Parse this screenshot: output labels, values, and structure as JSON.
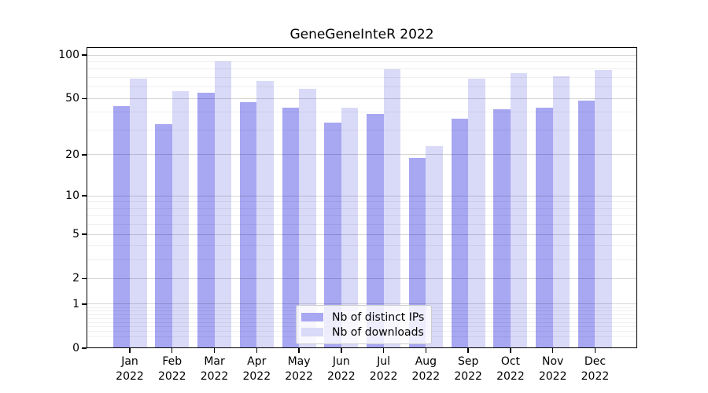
{
  "figure": {
    "title": "GeneGeneInteR 2022"
  },
  "chart_data": {
    "type": "bar",
    "title": "GeneGeneInteR 2022",
    "months": [
      "Jan",
      "Feb",
      "Mar",
      "Apr",
      "May",
      "Jun",
      "Jul",
      "Aug",
      "Sep",
      "Oct",
      "Nov",
      "Dec"
    ],
    "year_label": "2022",
    "series": [
      {
        "name": "Nb of distinct IPs",
        "color": "#a7a7f2",
        "values": [
          44,
          33,
          55,
          47,
          43,
          34,
          39,
          19,
          36,
          42,
          43,
          48
        ]
      },
      {
        "name": "Nb of downloads",
        "color": "#d9d9f8",
        "values": [
          69,
          56,
          91,
          66,
          58,
          43,
          80,
          23,
          69,
          75,
          71,
          79
        ]
      }
    ],
    "yscale": "log1p",
    "ylim": [
      0,
      113
    ],
    "y_tick_labels": [
      "0",
      "1",
      "2",
      "5",
      "10",
      "20",
      "50",
      "100"
    ],
    "y_tick_values": [
      0,
      1,
      2,
      5,
      10,
      20,
      50,
      100
    ],
    "y_major_gridlines": [
      1,
      2,
      5,
      10,
      20,
      50,
      100
    ],
    "y_minor_gridlines": [
      0.2,
      0.3,
      0.4,
      0.5,
      0.6,
      0.7,
      0.8,
      0.9,
      3,
      4,
      6,
      7,
      8,
      9,
      30,
      40,
      60,
      70,
      80,
      90
    ],
    "grid": true,
    "legend_position": "lower center",
    "grid_major_color": "rgba(0,0,0,0.155)",
    "grid_minor_color": "rgba(0,0,0,0.055)"
  }
}
